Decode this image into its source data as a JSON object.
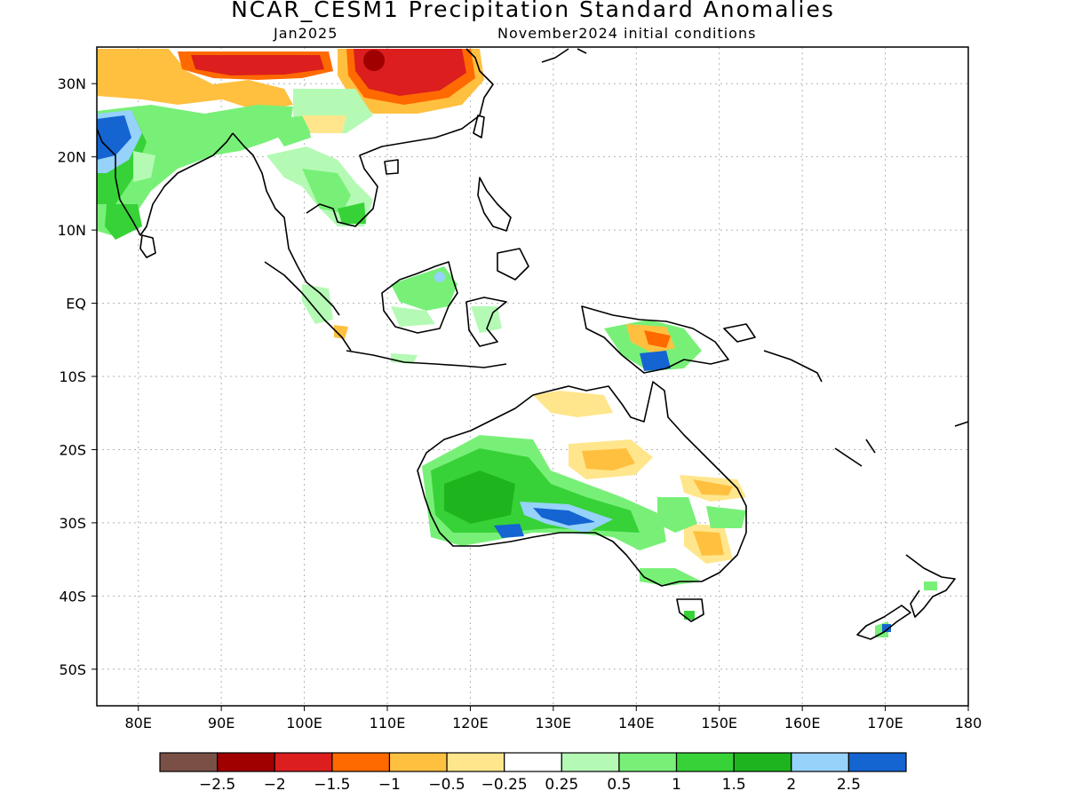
{
  "title": "NCAR_CESM1 Precipitation Standard Anomalies",
  "subtitle_left": "Jan2025",
  "subtitle_right": "November2024 initial conditions",
  "map": {
    "projection": "equirectangular",
    "lon_range": [
      75,
      180
    ],
    "lat_range": [
      -55,
      35
    ],
    "grid": "dotted",
    "lat_tick_labels": [
      "30N",
      "20N",
      "10N",
      "EQ",
      "10S",
      "20S",
      "30S",
      "40S",
      "50S"
    ],
    "lon_tick_labels": [
      "80E",
      "90E",
      "100E",
      "110E",
      "120E",
      "130E",
      "140E",
      "150E",
      "160E",
      "170E",
      "180"
    ]
  },
  "colorbar": {
    "colors": [
      "#7a5046",
      "#a00000",
      "#dc1e1e",
      "#ff6a00",
      "#ffc040",
      "#ffe68c",
      "#ffffff",
      "#b4fab4",
      "#78f078",
      "#37d237",
      "#1eb41e",
      "#96d2fa",
      "#1464d2"
    ],
    "labels": [
      "−2.5",
      "−2",
      "−1.5",
      "−1",
      "−0.5",
      "−0.25",
      "0.25",
      "0.5",
      "1",
      "1.5",
      "2",
      "2.5"
    ]
  },
  "anomaly_colors": {
    "red_dark": "#c80000",
    "red": "#dc1e1e",
    "orange": "#ff6a00",
    "light_orange": "#ffc040",
    "yellow": "#ffe68c",
    "light_green": "#b4fab4",
    "green": "#78f078",
    "mid_green": "#37d237",
    "dark_green": "#1eb41e",
    "light_blue": "#96d2fa",
    "blue": "#1464d2"
  }
}
